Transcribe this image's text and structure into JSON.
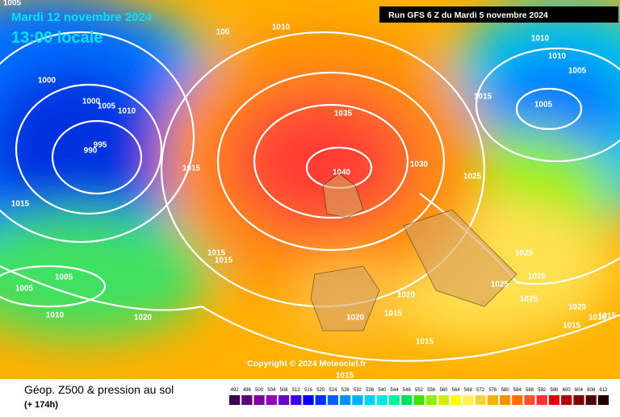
{
  "header": {
    "date": "Mardi 12 novembre 2024",
    "time": "13:00 locale",
    "run": "Run GFS 6 Z du Mardi 5 novembre 2024"
  },
  "copyright": "Copyright © 2024 Meteociel.fr",
  "footer": {
    "title": "Géop. Z500 & pression au sol",
    "lead": "(+ 174h)"
  },
  "isobar_labels": [
    1005,
    1010,
    100,
    1000,
    1000,
    1005,
    1010,
    995,
    990,
    1015,
    1015,
    1035,
    1040,
    1030,
    1025,
    1015,
    1010,
    1010,
    1005,
    1005,
    1015,
    1015,
    1005,
    1005,
    1010,
    1020,
    1020,
    1015,
    1020,
    1015,
    1025,
    1025,
    1025,
    1025,
    1020,
    1010,
    1015,
    1015,
    1015
  ],
  "scale": {
    "labels": [
      492,
      496,
      500,
      504,
      508,
      512,
      516,
      520,
      524,
      528,
      532,
      536,
      540,
      544,
      548,
      552,
      556,
      560,
      564,
      568,
      572,
      576,
      580,
      584,
      588,
      592,
      596,
      600,
      604,
      608,
      612
    ],
    "colors": [
      "#3a0050",
      "#5a0078",
      "#7a00a0",
      "#9000c0",
      "#6a00d0",
      "#3a00e0",
      "#0000ff",
      "#0030ff",
      "#0060ff",
      "#0090ff",
      "#00b0ff",
      "#00d0ff",
      "#00e8e0",
      "#00f0a0",
      "#00e060",
      "#40e000",
      "#90f000",
      "#d0f000",
      "#ffff00",
      "#fff060",
      "#ffd040",
      "#ffb000",
      "#ff9000",
      "#ff7000",
      "#ff5030",
      "#ff3030",
      "#e00000",
      "#b00000",
      "#800000",
      "#500000",
      "#200000"
    ]
  }
}
